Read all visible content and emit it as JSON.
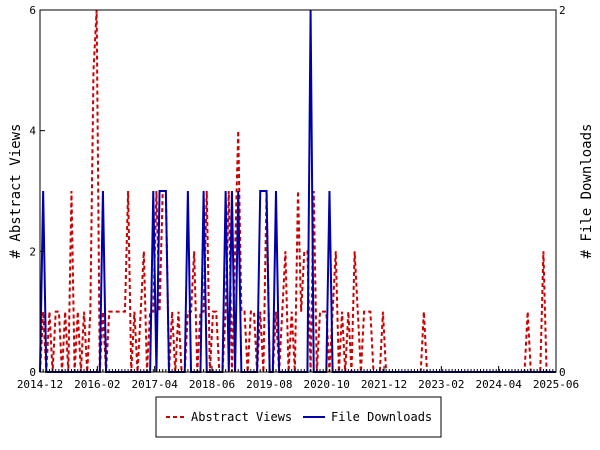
{
  "chart_data": {
    "type": "line",
    "x_tick_labels": [
      "2014-12",
      "2016-02",
      "2017-04",
      "2018-06",
      "2019-08",
      "2020-10",
      "2021-12",
      "2023-02",
      "2024-04",
      "2025-06"
    ],
    "y_left": {
      "label": "# Abstract Views",
      "lim": [
        0,
        6
      ],
      "ticks": [
        "0",
        "2",
        "4",
        "6"
      ]
    },
    "y_right": {
      "label": "# File Downloads",
      "lim": [
        0,
        2
      ],
      "ticks": [
        "0",
        "2"
      ]
    },
    "grid": false,
    "legend_position": "bottom",
    "series": [
      {
        "name": "Abstract Views",
        "axis": "left",
        "color": "#cc0000",
        "dash": "dashed",
        "values": [
          0,
          1,
          0,
          1,
          0,
          1,
          1,
          0,
          1,
          0,
          3,
          0,
          1,
          0,
          1,
          0,
          1,
          5,
          6,
          0,
          1,
          0,
          1,
          1,
          1,
          1,
          1,
          1,
          3,
          0,
          1,
          0,
          1,
          2,
          0,
          1,
          1,
          3,
          1,
          3,
          3,
          0,
          1,
          0,
          1,
          0,
          0,
          1,
          1,
          2,
          0,
          1,
          1,
          3,
          0,
          1,
          1,
          0,
          0,
          1,
          3,
          0,
          2,
          4,
          1,
          1,
          0,
          1,
          1,
          0,
          1,
          0,
          3,
          0,
          0,
          1,
          0,
          1,
          2,
          0,
          1,
          0,
          3,
          1,
          2,
          2,
          0,
          3,
          0,
          1,
          1,
          1,
          0,
          1,
          2,
          0,
          1,
          0,
          1,
          0,
          2,
          1,
          0,
          1,
          1,
          1,
          0,
          0,
          0,
          1,
          0,
          0,
          0,
          0,
          0,
          0,
          0,
          0,
          0,
          0,
          0,
          0,
          1,
          0,
          0,
          0,
          0,
          0,
          0,
          0,
          0,
          0,
          0,
          0,
          0,
          0,
          0,
          0,
          0,
          0,
          0,
          0,
          0,
          0,
          0,
          0,
          0,
          0,
          0,
          0,
          0,
          0,
          0,
          0,
          0,
          1,
          0,
          0,
          0,
          0,
          2,
          0,
          0,
          0,
          0
        ]
      },
      {
        "name": "File Downloads",
        "axis": "right",
        "color": "#0000aa",
        "dash": "solid",
        "values": [
          0,
          1,
          0,
          0,
          0,
          0,
          0,
          0,
          0,
          0,
          0,
          0,
          0,
          0,
          0,
          0,
          0,
          0,
          0,
          0,
          1,
          0,
          0,
          0,
          0,
          0,
          0,
          0,
          0,
          0,
          0,
          0,
          0,
          0,
          0,
          0,
          1,
          0,
          1,
          1,
          1,
          0,
          0,
          0,
          0,
          0,
          0,
          1,
          0,
          0,
          0,
          0,
          1,
          0,
          0,
          0,
          0,
          0,
          0,
          1,
          0,
          1,
          0,
          1,
          0,
          0,
          0,
          0,
          0,
          0,
          1,
          1,
          1,
          0,
          0,
          1,
          0,
          0,
          0,
          0,
          0,
          0,
          0,
          0,
          0,
          0,
          2,
          0,
          0,
          0,
          0,
          0,
          1,
          0,
          0,
          0,
          0,
          0,
          0,
          0,
          0,
          0,
          0,
          0,
          0,
          0,
          0,
          0,
          0,
          0,
          0,
          0,
          0,
          0,
          0,
          0,
          0,
          0,
          0,
          0,
          0,
          0,
          0,
          0,
          0,
          0,
          0,
          0,
          0,
          0,
          0,
          0,
          0,
          0,
          0,
          0,
          0,
          0,
          0,
          0,
          0,
          0,
          0,
          0,
          0,
          0,
          0,
          0,
          0,
          0,
          0,
          0,
          0,
          0,
          0,
          0,
          0,
          0,
          0,
          0,
          0,
          0,
          0,
          0,
          0
        ]
      }
    ]
  }
}
